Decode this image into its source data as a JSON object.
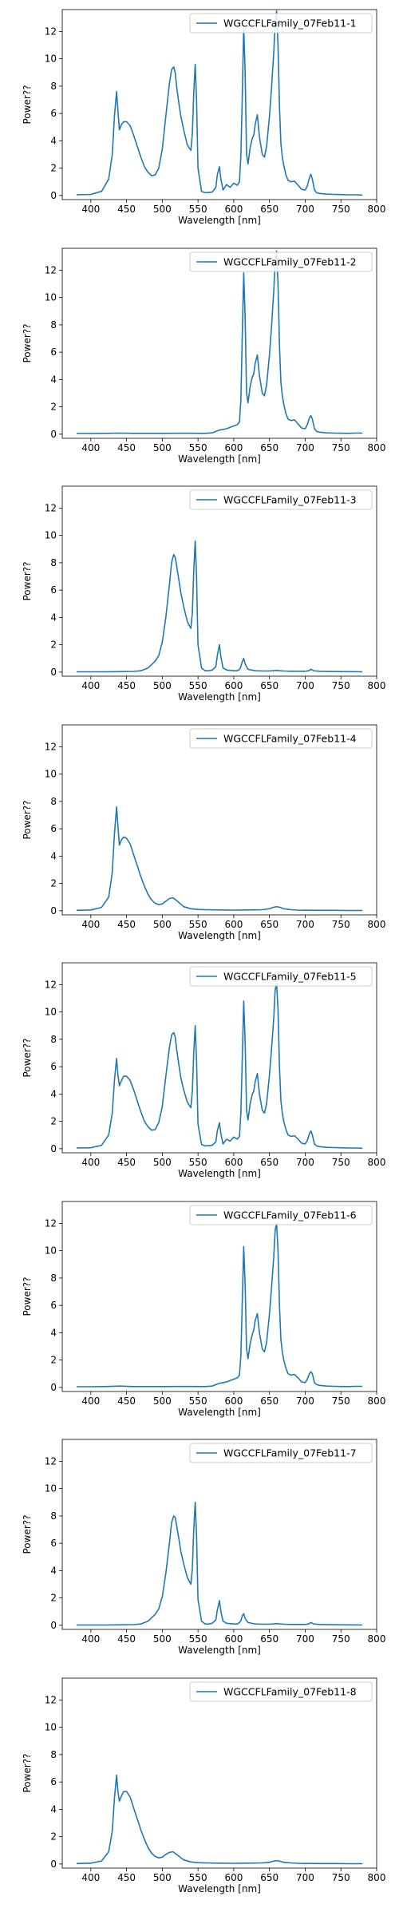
{
  "chart_data": [
    {
      "type": "line",
      "xlabel": "Wavelength [nm]",
      "ylabel": "Power??",
      "xlim": [
        360,
        800
      ],
      "ylim": [
        -0.3,
        13.6
      ],
      "xticks": [
        400,
        450,
        500,
        550,
        600,
        650,
        700,
        750,
        800
      ],
      "yticks": [
        0,
        2,
        4,
        6,
        8,
        10,
        12
      ],
      "legend": "top-right",
      "color": "#1f77b4",
      "series": [
        {
          "name": "WGCCFLFamily_07Feb11-1",
          "x": [
            380,
            400,
            415,
            425,
            430,
            433,
            436,
            438,
            440,
            443,
            446,
            450,
            455,
            460,
            465,
            470,
            475,
            480,
            485,
            490,
            495,
            500,
            505,
            510,
            513,
            516,
            518,
            520,
            523,
            526,
            530,
            535,
            540,
            542,
            544,
            546,
            548,
            550,
            555,
            560,
            570,
            575,
            577,
            580,
            582,
            585,
            590,
            595,
            600,
            605,
            608,
            610,
            612,
            614,
            616,
            618,
            620,
            623,
            626,
            628,
            630,
            633,
            636,
            640,
            643,
            646,
            650,
            653,
            656,
            658,
            660,
            662,
            664,
            666,
            668,
            670,
            673,
            676,
            680,
            685,
            690,
            695,
            700,
            703,
            706,
            708,
            710,
            713,
            716,
            720,
            730,
            740,
            750,
            760,
            770,
            780
          ],
          "y": [
            0.05,
            0.08,
            0.3,
            1.2,
            3.0,
            5.8,
            7.6,
            6.2,
            4.8,
            5.2,
            5.4,
            5.4,
            5.1,
            4.4,
            3.6,
            2.8,
            2.1,
            1.7,
            1.45,
            1.5,
            2.0,
            3.4,
            5.8,
            8.2,
            9.2,
            9.4,
            9.0,
            8.0,
            6.8,
            5.8,
            4.8,
            3.7,
            3.3,
            4.5,
            7.5,
            9.6,
            7.0,
            2.0,
            0.3,
            0.2,
            0.25,
            0.6,
            1.5,
            2.1,
            1.2,
            0.4,
            0.8,
            0.6,
            0.9,
            0.75,
            1.0,
            3.0,
            7.5,
            12.4,
            9.0,
            3.0,
            2.3,
            3.5,
            4.2,
            4.4,
            5.2,
            5.9,
            4.3,
            3.0,
            2.8,
            3.6,
            5.8,
            8.0,
            10.5,
            12.6,
            13.5,
            11.0,
            6.5,
            3.8,
            2.8,
            2.2,
            1.5,
            1.1,
            1.0,
            1.05,
            0.75,
            0.45,
            0.4,
            0.7,
            1.3,
            1.55,
            1.2,
            0.4,
            0.2,
            0.15,
            0.1,
            0.08,
            0.07,
            0.05,
            0.05,
            0.03
          ]
        },
        {
          "name": "WGCCFLFamily_07Feb11-2",
          "x": [
            380,
            400,
            420,
            440,
            460,
            480,
            500,
            520,
            540,
            560,
            570,
            575,
            580,
            585,
            590,
            595,
            600,
            605,
            608,
            610,
            612,
            614,
            616,
            618,
            620,
            623,
            626,
            628,
            630,
            633,
            636,
            640,
            643,
            646,
            650,
            653,
            656,
            658,
            660,
            662,
            664,
            666,
            668,
            670,
            673,
            676,
            680,
            685,
            690,
            695,
            700,
            703,
            706,
            708,
            710,
            713,
            716,
            720,
            730,
            740,
            750,
            760,
            770,
            780
          ],
          "y": [
            0.05,
            0.05,
            0.06,
            0.08,
            0.06,
            0.06,
            0.06,
            0.07,
            0.07,
            0.06,
            0.1,
            0.2,
            0.3,
            0.35,
            0.4,
            0.5,
            0.6,
            0.7,
            0.9,
            2.6,
            7.5,
            11.8,
            8.5,
            3.0,
            2.3,
            3.5,
            4.2,
            4.4,
            5.2,
            5.8,
            4.3,
            3.0,
            2.8,
            3.6,
            5.8,
            8.0,
            10.5,
            12.5,
            13.4,
            11.0,
            6.5,
            3.8,
            2.8,
            2.2,
            1.5,
            1.1,
            1.0,
            1.05,
            0.75,
            0.45,
            0.4,
            0.7,
            1.2,
            1.35,
            1.1,
            0.4,
            0.2,
            0.15,
            0.1,
            0.08,
            0.07,
            0.06,
            0.08,
            0.08
          ]
        },
        {
          "name": "WGCCFLFamily_07Feb11-3",
          "x": [
            380,
            420,
            440,
            460,
            470,
            480,
            490,
            495,
            500,
            505,
            510,
            513,
            516,
            518,
            520,
            523,
            526,
            530,
            535,
            540,
            542,
            544,
            546,
            548,
            550,
            555,
            560,
            565,
            570,
            575,
            577,
            580,
            582,
            585,
            590,
            600,
            605,
            608,
            610,
            612,
            614,
            616,
            620,
            630,
            640,
            650,
            660,
            670,
            680,
            690,
            700,
            705,
            708,
            712,
            720,
            740,
            760,
            780
          ],
          "y": [
            0.02,
            0.02,
            0.03,
            0.05,
            0.1,
            0.3,
            0.8,
            1.2,
            2.2,
            4.0,
            6.4,
            8.0,
            8.6,
            8.4,
            7.8,
            6.8,
            5.8,
            4.8,
            3.7,
            3.2,
            4.3,
            7.4,
            9.6,
            7.0,
            2.0,
            0.3,
            0.1,
            0.1,
            0.15,
            0.4,
            1.2,
            2.0,
            1.1,
            0.3,
            0.15,
            0.1,
            0.1,
            0.2,
            0.4,
            0.8,
            1.0,
            0.6,
            0.2,
            0.1,
            0.08,
            0.08,
            0.12,
            0.08,
            0.06,
            0.06,
            0.06,
            0.1,
            0.2,
            0.1,
            0.06,
            0.04,
            0.03,
            0.02
          ]
        },
        {
          "name": "WGCCFLFamily_07Feb11-4",
          "x": [
            380,
            400,
            415,
            425,
            430,
            433,
            436,
            438,
            440,
            443,
            446,
            450,
            455,
            460,
            465,
            470,
            475,
            480,
            485,
            490,
            495,
            500,
            505,
            510,
            515,
            520,
            530,
            540,
            550,
            560,
            580,
            600,
            620,
            640,
            650,
            655,
            660,
            665,
            670,
            680,
            690,
            700,
            720,
            740,
            760,
            780
          ],
          "y": [
            0.03,
            0.06,
            0.25,
            1.0,
            2.8,
            5.6,
            7.6,
            6.2,
            4.8,
            5.2,
            5.4,
            5.3,
            4.9,
            4.1,
            3.3,
            2.5,
            1.8,
            1.2,
            0.8,
            0.55,
            0.45,
            0.5,
            0.7,
            0.9,
            0.95,
            0.75,
            0.3,
            0.15,
            0.1,
            0.08,
            0.06,
            0.05,
            0.06,
            0.08,
            0.15,
            0.25,
            0.3,
            0.25,
            0.15,
            0.08,
            0.05,
            0.04,
            0.03,
            0.03,
            0.02,
            0.02
          ]
        },
        {
          "name": "WGCCFLFamily_07Feb11-5",
          "x": [
            380,
            400,
            415,
            425,
            430,
            433,
            436,
            438,
            440,
            443,
            446,
            450,
            455,
            460,
            465,
            470,
            475,
            480,
            485,
            490,
            495,
            500,
            505,
            510,
            513,
            516,
            518,
            520,
            523,
            526,
            530,
            535,
            540,
            542,
            544,
            546,
            548,
            550,
            555,
            560,
            570,
            575,
            577,
            580,
            582,
            585,
            590,
            595,
            600,
            605,
            608,
            610,
            612,
            614,
            616,
            618,
            620,
            623,
            626,
            628,
            630,
            633,
            636,
            640,
            643,
            646,
            650,
            653,
            656,
            658,
            660,
            662,
            664,
            666,
            668,
            670,
            673,
            676,
            680,
            685,
            690,
            695,
            700,
            703,
            706,
            708,
            710,
            713,
            716,
            720,
            730,
            740,
            750,
            760,
            770,
            780
          ],
          "y": [
            0.05,
            0.07,
            0.25,
            1.0,
            2.6,
            5.0,
            6.6,
            5.4,
            4.6,
            5.0,
            5.3,
            5.3,
            5.0,
            4.3,
            3.5,
            2.7,
            2.0,
            1.6,
            1.35,
            1.4,
            1.9,
            3.1,
            5.3,
            7.4,
            8.3,
            8.5,
            8.2,
            7.3,
            6.2,
            5.2,
            4.3,
            3.4,
            3.0,
            4.2,
            7.0,
            9.0,
            6.5,
            1.8,
            0.3,
            0.2,
            0.25,
            0.5,
            1.3,
            1.9,
            1.1,
            0.35,
            0.7,
            0.55,
            0.85,
            0.7,
            0.9,
            2.7,
            6.8,
            10.8,
            7.8,
            2.8,
            2.1,
            3.3,
            4.0,
            4.2,
            4.9,
            5.5,
            4.0,
            2.8,
            2.6,
            3.3,
            5.4,
            7.4,
            9.6,
            11.6,
            12.1,
            10.2,
            6.0,
            3.5,
            2.6,
            2.0,
            1.4,
            1.0,
            0.9,
            0.95,
            0.7,
            0.4,
            0.35,
            0.6,
            1.1,
            1.3,
            1.0,
            0.35,
            0.2,
            0.15,
            0.1,
            0.08,
            0.07,
            0.05,
            0.05,
            0.03
          ]
        },
        {
          "name": "WGCCFLFamily_07Feb11-6",
          "x": [
            380,
            400,
            420,
            440,
            460,
            480,
            500,
            520,
            540,
            560,
            570,
            575,
            580,
            585,
            590,
            595,
            600,
            605,
            608,
            610,
            612,
            614,
            616,
            618,
            620,
            623,
            626,
            628,
            630,
            633,
            636,
            640,
            643,
            646,
            650,
            653,
            656,
            658,
            660,
            662,
            664,
            666,
            668,
            670,
            673,
            676,
            680,
            685,
            690,
            695,
            700,
            703,
            706,
            708,
            710,
            713,
            716,
            720,
            730,
            740,
            750,
            760,
            770,
            780
          ],
          "y": [
            0.05,
            0.05,
            0.06,
            0.1,
            0.06,
            0.06,
            0.06,
            0.07,
            0.07,
            0.06,
            0.1,
            0.2,
            0.3,
            0.35,
            0.4,
            0.5,
            0.6,
            0.7,
            0.9,
            2.4,
            6.5,
            10.3,
            7.5,
            2.8,
            2.1,
            3.2,
            3.9,
            4.2,
            4.9,
            5.4,
            4.0,
            2.8,
            2.6,
            3.3,
            5.4,
            7.4,
            9.6,
            11.5,
            12.0,
            10.0,
            6.0,
            3.5,
            2.6,
            2.0,
            1.4,
            1.0,
            0.9,
            0.95,
            0.7,
            0.4,
            0.35,
            0.6,
            1.0,
            1.15,
            1.0,
            0.35,
            0.2,
            0.15,
            0.1,
            0.08,
            0.07,
            0.06,
            0.08,
            0.08
          ]
        },
        {
          "name": "WGCCFLFamily_07Feb11-7",
          "x": [
            380,
            420,
            440,
            460,
            470,
            480,
            490,
            495,
            500,
            505,
            510,
            513,
            516,
            518,
            520,
            523,
            526,
            530,
            535,
            540,
            542,
            544,
            546,
            548,
            550,
            555,
            560,
            565,
            570,
            575,
            577,
            580,
            582,
            585,
            590,
            600,
            605,
            608,
            610,
            612,
            614,
            616,
            620,
            630,
            640,
            650,
            660,
            670,
            680,
            690,
            700,
            705,
            708,
            712,
            720,
            740,
            760,
            780
          ],
          "y": [
            0.02,
            0.02,
            0.03,
            0.05,
            0.1,
            0.3,
            0.8,
            1.2,
            2.1,
            3.8,
            6.0,
            7.5,
            8.0,
            7.9,
            7.3,
            6.4,
            5.4,
            4.5,
            3.5,
            3.0,
            4.1,
            7.0,
            9.0,
            6.6,
            1.9,
            0.3,
            0.1,
            0.1,
            0.15,
            0.4,
            1.1,
            1.8,
            1.0,
            0.3,
            0.15,
            0.1,
            0.1,
            0.2,
            0.35,
            0.7,
            0.85,
            0.5,
            0.2,
            0.1,
            0.08,
            0.08,
            0.12,
            0.08,
            0.06,
            0.06,
            0.06,
            0.1,
            0.2,
            0.1,
            0.06,
            0.04,
            0.03,
            0.02
          ]
        },
        {
          "name": "WGCCFLFamily_07Feb11-8",
          "x": [
            380,
            400,
            415,
            425,
            430,
            433,
            436,
            438,
            440,
            443,
            446,
            450,
            455,
            460,
            465,
            470,
            475,
            480,
            485,
            490,
            495,
            500,
            505,
            510,
            515,
            520,
            530,
            540,
            550,
            560,
            580,
            600,
            620,
            640,
            650,
            655,
            660,
            665,
            670,
            680,
            690,
            700,
            720,
            740,
            760,
            780
          ],
          "y": [
            0.03,
            0.06,
            0.22,
            0.9,
            2.4,
            4.8,
            6.5,
            5.3,
            4.6,
            5.0,
            5.3,
            5.3,
            4.9,
            4.1,
            3.3,
            2.5,
            1.8,
            1.2,
            0.8,
            0.55,
            0.45,
            0.5,
            0.7,
            0.85,
            0.9,
            0.7,
            0.3,
            0.15,
            0.1,
            0.08,
            0.06,
            0.05,
            0.06,
            0.08,
            0.12,
            0.2,
            0.25,
            0.2,
            0.12,
            0.08,
            0.05,
            0.04,
            0.03,
            0.03,
            0.02,
            0.02
          ]
        }
      ]
    }
  ]
}
